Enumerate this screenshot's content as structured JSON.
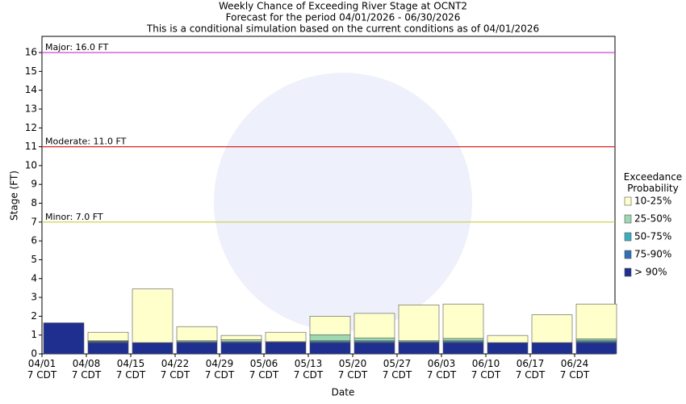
{
  "chart_data": {
    "type": "stacked_bar",
    "title": "Weekly Chance of Exceeding River Stage at OCNT2",
    "subtitle": [
      "Forecast for the period 04/01/2026 - 06/30/2026",
      "This is a conditional simulation based on the current conditions as of 04/01/2026"
    ],
    "x_label": "Date",
    "y_label": "Stage (FT)",
    "legend_title": "Exceedance Probability",
    "categories": [
      "04/01\n7 CDT",
      "04/08\n7 CDT",
      "04/15\n7 CDT",
      "04/22\n7 CDT",
      "04/29\n7 CDT",
      "05/06\n7 CDT",
      "05/13\n7 CDT",
      "05/20\n7 CDT",
      "05/27\n7 CDT",
      "06/03\n7 CDT",
      "06/10\n7 CDT",
      "06/17\n7 CDT",
      "06/24\n7 CDT"
    ],
    "series": [
      {
        "name": "> 90%",
        "color": "#1f2f8f",
        "values": [
          1.65,
          0.6,
          0.6,
          0.6,
          0.6,
          0.62,
          0.6,
          0.6,
          0.6,
          0.6,
          0.6,
          0.6,
          0.6
        ]
      },
      {
        "name": "75-90%",
        "color": "#2e6fb5",
        "values": [
          0,
          0.05,
          0,
          0.05,
          0.05,
          0.03,
          0.05,
          0.05,
          0.05,
          0.05,
          0,
          0,
          0.05
        ]
      },
      {
        "name": "50-75%",
        "color": "#3aaec0",
        "values": [
          0,
          0.02,
          0,
          0,
          0,
          0,
          0.05,
          0.05,
          0,
          0.05,
          0,
          0,
          0.05
        ]
      },
      {
        "name": "25-50%",
        "color": "#9ed8b0",
        "values": [
          0,
          0.03,
          0,
          0.05,
          0.1,
          0,
          0.32,
          0.15,
          0.05,
          0.12,
          0,
          0,
          0.1
        ]
      },
      {
        "name": "10-25%",
        "color": "#ffffcc",
        "values": [
          0,
          0.45,
          2.85,
          0.75,
          0.23,
          0.5,
          0.98,
          1.3,
          1.9,
          1.83,
          0.38,
          1.48,
          1.85
        ]
      }
    ],
    "ylim": [
      0,
      16.86
    ],
    "yticks": [
      0,
      1,
      2,
      3,
      4,
      5,
      6,
      7,
      8,
      9,
      10,
      11,
      12,
      13,
      14,
      15,
      16
    ],
    "thresholds": [
      {
        "value": 16,
        "label": "Major: 16.0 FT",
        "color": "#cc33cc"
      },
      {
        "value": 11,
        "label": "Moderate: 11.0 FT",
        "color": "#dd2222"
      },
      {
        "value": 7,
        "label": "Minor: 7.0 FT",
        "color": "#cccc44"
      }
    ]
  }
}
